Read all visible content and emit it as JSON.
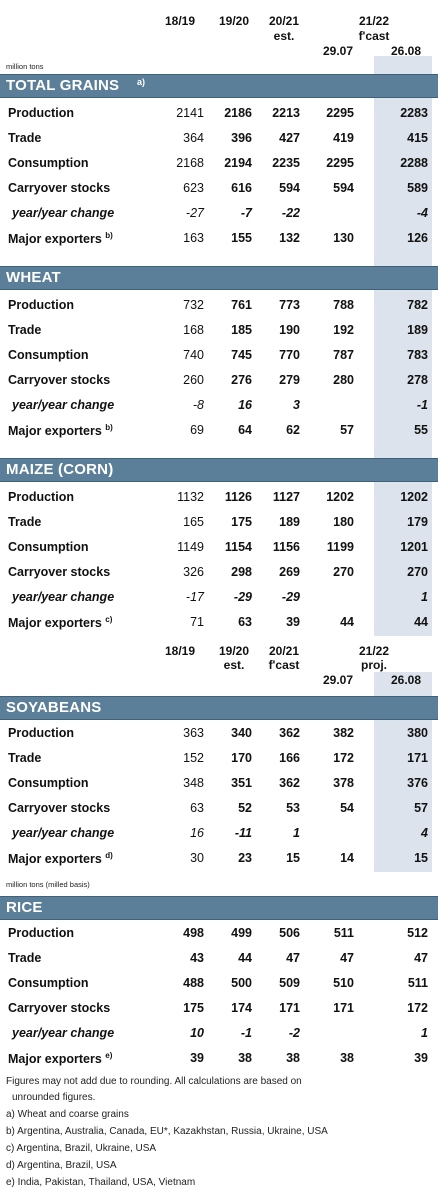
{
  "header1": {
    "col_1819": "18/19",
    "col_1920": "19/20",
    "col_2021": "20/21",
    "col_2021_sub": "est.",
    "col_2122": "21/22",
    "col_2122_sub": "f'cast",
    "sub_a": "29.07",
    "sub_b": "26.08",
    "unit": "million tons"
  },
  "header2": {
    "col_1819": "18/19",
    "col_1920": "19/20",
    "col_1920_sub": "est.",
    "col_2021": "20/21",
    "col_2021_sub": "f'cast",
    "col_2122": "21/22",
    "col_2122_sub": "proj.",
    "sub_a": "29.07",
    "sub_b": "26.08"
  },
  "rice_unit": "million tons (milled basis)",
  "sections": [
    {
      "id": "total",
      "title": "TOTAL GRAINS",
      "note": "a)",
      "bold_from": 1,
      "rows": [
        {
          "label": "Production",
          "values": [
            "2141",
            "2186",
            "2213",
            "2295",
            "2283"
          ]
        },
        {
          "label": "Trade",
          "values": [
            "364",
            "396",
            "427",
            "419",
            "415"
          ]
        },
        {
          "label": "Consumption",
          "values": [
            "2168",
            "2194",
            "2235",
            "2295",
            "2288"
          ]
        },
        {
          "label": "Carryover stocks",
          "values": [
            "623",
            "616",
            "594",
            "594",
            "589"
          ]
        },
        {
          "label": "year/year change",
          "values": [
            "-27",
            "-7",
            "-22",
            "",
            "-4"
          ]
        },
        {
          "label": "Major exporters",
          "note": "b)",
          "values": [
            "163",
            "155",
            "132",
            "130",
            "126"
          ]
        }
      ]
    },
    {
      "id": "wheat",
      "title": "WHEAT",
      "note": "",
      "bold_from": 1,
      "rows": [
        {
          "label": "Production",
          "values": [
            "732",
            "761",
            "773",
            "788",
            "782"
          ]
        },
        {
          "label": "Trade",
          "values": [
            "168",
            "185",
            "190",
            "192",
            "189"
          ]
        },
        {
          "label": "Consumption",
          "values": [
            "740",
            "745",
            "770",
            "787",
            "783"
          ]
        },
        {
          "label": "Carryover stocks",
          "values": [
            "260",
            "276",
            "279",
            "280",
            "278"
          ]
        },
        {
          "label": "year/year change",
          "values": [
            "-8",
            "16",
            "3",
            "",
            "-1"
          ]
        },
        {
          "label": "Major exporters",
          "note": "b)",
          "values": [
            "69",
            "64",
            "62",
            "57",
            "55"
          ]
        }
      ]
    },
    {
      "id": "maize",
      "title": "MAIZE (CORN)",
      "note": "",
      "bold_from": 1,
      "rows": [
        {
          "label": "Production",
          "values": [
            "1132",
            "1126",
            "1127",
            "1202",
            "1202"
          ]
        },
        {
          "label": "Trade",
          "values": [
            "165",
            "175",
            "189",
            "180",
            "179"
          ]
        },
        {
          "label": "Consumption",
          "values": [
            "1149",
            "1154",
            "1156",
            "1199",
            "1201"
          ]
        },
        {
          "label": "Carryover stocks",
          "values": [
            "326",
            "298",
            "269",
            "270",
            "270"
          ]
        },
        {
          "label": "year/year change",
          "values": [
            "-17",
            "-29",
            "-29",
            "",
            "1"
          ]
        },
        {
          "label": "Major exporters",
          "note": "c)",
          "values": [
            "71",
            "63",
            "39",
            "44",
            "44"
          ]
        }
      ]
    },
    {
      "id": "soy",
      "title": "SOYABEANS",
      "note": "",
      "bold_from": 1,
      "rows": [
        {
          "label": "Production",
          "values": [
            "363",
            "340",
            "362",
            "382",
            "380"
          ]
        },
        {
          "label": "Trade",
          "values": [
            "152",
            "170",
            "166",
            "172",
            "171"
          ]
        },
        {
          "label": "Consumption",
          "values": [
            "348",
            "351",
            "362",
            "378",
            "376"
          ]
        },
        {
          "label": "Carryover stocks",
          "values": [
            "63",
            "52",
            "53",
            "54",
            "57"
          ]
        },
        {
          "label": "year/year change",
          "values": [
            "16",
            "-11",
            "1",
            "",
            "4"
          ]
        },
        {
          "label": "Major exporters",
          "note": "d)",
          "values": [
            "30",
            "23",
            "15",
            "14",
            "15"
          ]
        }
      ]
    },
    {
      "id": "rice",
      "title": "RICE",
      "note": "",
      "bold_from": 0,
      "rows": [
        {
          "label": "Production",
          "values": [
            "498",
            "499",
            "506",
            "511",
            "512"
          ]
        },
        {
          "label": "Trade",
          "values": [
            "43",
            "44",
            "47",
            "47",
            "47"
          ]
        },
        {
          "label": "Consumption",
          "values": [
            "488",
            "500",
            "509",
            "510",
            "511"
          ]
        },
        {
          "label": "Carryover stocks",
          "values": [
            "175",
            "174",
            "171",
            "171",
            "172"
          ]
        },
        {
          "label": "year/year change",
          "values": [
            "10",
            "-1",
            "-2",
            "",
            "1"
          ]
        },
        {
          "label": "Major exporters",
          "note": "e)",
          "values": [
            "39",
            "38",
            "38",
            "38",
            "39"
          ]
        }
      ]
    }
  ],
  "footnotes": [
    "Figures may not add due to rounding. All calculations are based on",
    "    unrounded figures.",
    "a) Wheat and coarse grains",
    "b) Argentina, Australia, Canada, EU*, Kazakhstan, Russia, Ukraine, USA",
    "c) Argentina, Brazil, Ukraine, USA",
    "d) Argentina, Brazil, USA",
    "e) India, Pakistan, Thailand, USA, Vietnam"
  ]
}
